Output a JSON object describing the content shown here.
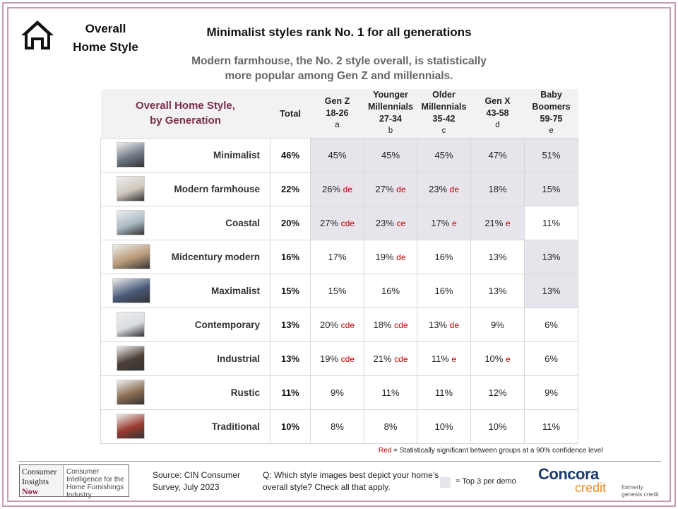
{
  "header": {
    "section_title_line1": "Overall",
    "section_title_line2": "Home Style",
    "headline": "Minimalist styles rank No. 1 for all generations",
    "subhead_line1": "Modern farmhouse, the No. 2 style overall, is statistically",
    "subhead_line2": "more popular among Gen Z and millennials.",
    "icon": "house-icon"
  },
  "table": {
    "title_line1": "Overall Home Style,",
    "title_line2": "by Generation",
    "columns": [
      {
        "lines": [
          "Total"
        ],
        "letter": ""
      },
      {
        "lines": [
          "Gen Z",
          "18-26"
        ],
        "letter": "a"
      },
      {
        "lines": [
          "Younger",
          "Millennials",
          "27-34"
        ],
        "letter": "b"
      },
      {
        "lines": [
          "Older",
          "Millennials",
          "35-42"
        ],
        "letter": "c"
      },
      {
        "lines": [
          "Gen X",
          "43-58"
        ],
        "letter": "d"
      },
      {
        "lines": [
          "Baby",
          "Boomers",
          "59-75"
        ],
        "letter": "e"
      }
    ],
    "rows": [
      {
        "style": "Minimalist",
        "total": "46%",
        "thumb": "#6f7a86",
        "cells": [
          {
            "v": "45%",
            "s": "",
            "hl": true
          },
          {
            "v": "45%",
            "s": "",
            "hl": true
          },
          {
            "v": "45%",
            "s": "",
            "hl": true
          },
          {
            "v": "47%",
            "s": "",
            "hl": true
          },
          {
            "v": "51%",
            "s": "",
            "hl": true
          }
        ]
      },
      {
        "style": "Modern farmhouse",
        "total": "22%",
        "thumb": "#cfc8bd",
        "cells": [
          {
            "v": "26%",
            "s": "de",
            "hl": true
          },
          {
            "v": "27%",
            "s": "de",
            "hl": true
          },
          {
            "v": "23%",
            "s": "de",
            "hl": true
          },
          {
            "v": "18%",
            "s": "",
            "hl": true
          },
          {
            "v": "15%",
            "s": "",
            "hl": true
          }
        ]
      },
      {
        "style": "Coastal",
        "total": "20%",
        "thumb": "#a9b9c2",
        "cells": [
          {
            "v": "27%",
            "s": "cde",
            "hl": true
          },
          {
            "v": "23%",
            "s": "ce",
            "hl": true
          },
          {
            "v": "17%",
            "s": "e",
            "hl": true
          },
          {
            "v": "21%",
            "s": "e",
            "hl": true
          },
          {
            "v": "11%",
            "s": "",
            "hl": false
          }
        ]
      },
      {
        "style": "Midcentury modern",
        "total": "16%",
        "thumb": "#b99b78",
        "cells": [
          {
            "v": "17%",
            "s": "",
            "hl": false
          },
          {
            "v": "19%",
            "s": "de",
            "hl": false
          },
          {
            "v": "16%",
            "s": "",
            "hl": false
          },
          {
            "v": "13%",
            "s": "",
            "hl": false
          },
          {
            "v": "13%",
            "s": "",
            "hl": true
          }
        ]
      },
      {
        "style": "Maximalist",
        "total": "15%",
        "thumb": "#4a5a7a",
        "cells": [
          {
            "v": "15%",
            "s": "",
            "hl": false
          },
          {
            "v": "16%",
            "s": "",
            "hl": false
          },
          {
            "v": "16%",
            "s": "",
            "hl": false
          },
          {
            "v": "13%",
            "s": "",
            "hl": false
          },
          {
            "v": "13%",
            "s": "",
            "hl": true
          }
        ]
      },
      {
        "style": "Contemporary",
        "total": "13%",
        "thumb": "#d9dde2",
        "cells": [
          {
            "v": "20%",
            "s": "cde",
            "hl": false
          },
          {
            "v": "18%",
            "s": "cde",
            "hl": false
          },
          {
            "v": "13%",
            "s": "de",
            "hl": false
          },
          {
            "v": "9%",
            "s": "",
            "hl": false
          },
          {
            "v": "6%",
            "s": "",
            "hl": false
          }
        ]
      },
      {
        "style": "Industrial",
        "total": "13%",
        "thumb": "#4b3f36",
        "cells": [
          {
            "v": "19%",
            "s": "cde",
            "hl": false
          },
          {
            "v": "21%",
            "s": "cde",
            "hl": false
          },
          {
            "v": "11%",
            "s": "e",
            "hl": false
          },
          {
            "v": "10%",
            "s": "e",
            "hl": false
          },
          {
            "v": "6%",
            "s": "",
            "hl": false
          }
        ]
      },
      {
        "style": "Rustic",
        "total": "11%",
        "thumb": "#8a6d52",
        "cells": [
          {
            "v": "9%",
            "s": "",
            "hl": false
          },
          {
            "v": "11%",
            "s": "",
            "hl": false
          },
          {
            "v": "11%",
            "s": "",
            "hl": false
          },
          {
            "v": "12%",
            "s": "",
            "hl": false
          },
          {
            "v": "9%",
            "s": "",
            "hl": false
          }
        ]
      },
      {
        "style": "Traditional",
        "total": "10%",
        "thumb": "#9a3b2f",
        "cells": [
          {
            "v": "8%",
            "s": "",
            "hl": false
          },
          {
            "v": "8%",
            "s": "",
            "hl": false
          },
          {
            "v": "10%",
            "s": "",
            "hl": false
          },
          {
            "v": "10%",
            "s": "",
            "hl": false
          },
          {
            "v": "11%",
            "s": "",
            "hl": false
          }
        ]
      }
    ]
  },
  "note": {
    "red_word": "Red",
    "text": " = Statistically significant between groups at a 90% confidence level"
  },
  "footer": {
    "cin_left_line1": "Consumer",
    "cin_left_line2": "Insights",
    "cin_left_line3": "Now",
    "cin_right": "Consumer Intelligence for the Home Furnishings Industry",
    "source": "Source:  CIN Consumer Survey, July 2023",
    "question": "Q: Which style images best depict your home’s overall style? Check all that apply.",
    "legend_text": "= Top 3 per demo",
    "brand_name": "Concora",
    "brand_sub": "credit",
    "brand_formerly_1": "formerly",
    "brand_formerly_2": "genesis credit"
  },
  "colors": {
    "frame": "#c99bb4",
    "title_maroon": "#7a2d4e",
    "highlight": "#e8e4ec",
    "significance_red": "#c00000",
    "brand_navy": "#1b3b6f",
    "brand_orange": "#f08a24"
  }
}
